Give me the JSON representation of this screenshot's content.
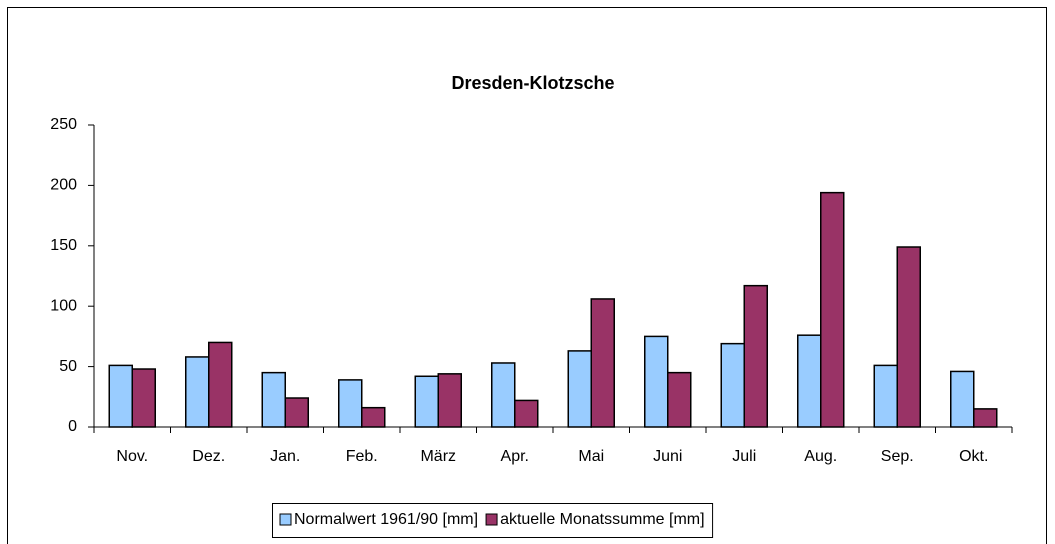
{
  "chart_data": {
    "type": "bar",
    "title": "Dresden-Klotzsche",
    "categories": [
      "Nov.",
      "Dez.",
      "Jan.",
      "Feb.",
      "März",
      "Apr.",
      "Mai",
      "Juni",
      "Juli",
      "Aug.",
      "Sep.",
      "Okt."
    ],
    "series": [
      {
        "name": "Normalwert 1961/90 [mm]",
        "color": "#99ccff",
        "values": [
          51,
          58,
          45,
          39,
          42,
          53,
          63,
          75,
          69,
          76,
          51,
          46
        ]
      },
      {
        "name": "aktuelle Monatssumme [mm]",
        "color": "#993366",
        "values": [
          48,
          70,
          24,
          16,
          44,
          22,
          106,
          45,
          117,
          194,
          149,
          15
        ]
      }
    ],
    "ylim": [
      0,
      250
    ],
    "yticks": [
      0,
      50,
      100,
      150,
      200,
      250
    ],
    "grid": false,
    "legend": "bottom"
  }
}
